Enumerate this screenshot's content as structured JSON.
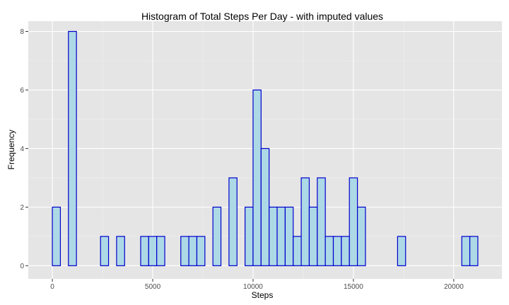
{
  "chart_data": {
    "type": "bar",
    "title": "Histogram of Total Steps Per Day - with imputed values",
    "xlabel": "Steps",
    "ylabel": "Frequency",
    "binwidth": 400,
    "x_bin_starts": [
      -400,
      0,
      400,
      800,
      1200,
      1600,
      2000,
      2400,
      2800,
      3200,
      3600,
      4000,
      4400,
      4800,
      5200,
      5600,
      6000,
      6400,
      6800,
      7200,
      7600,
      8000,
      8400,
      8800,
      9200,
      9600,
      10000,
      10400,
      10800,
      11200,
      11600,
      12000,
      12400,
      12800,
      13200,
      13600,
      14000,
      14400,
      14800,
      15200,
      15600,
      16000,
      16400,
      16800,
      17200,
      17600,
      18000,
      18400,
      18800,
      19200,
      19600,
      20000,
      20400,
      20800,
      21200
    ],
    "values": [
      0,
      2,
      0,
      8,
      0,
      0,
      0,
      1,
      0,
      1,
      0,
      0,
      1,
      1,
      1,
      0,
      0,
      1,
      1,
      1,
      0,
      2,
      0,
      3,
      0,
      2,
      6,
      4,
      2,
      2,
      2,
      1,
      3,
      2,
      3,
      1,
      1,
      1,
      3,
      2,
      0,
      0,
      0,
      0,
      1,
      0,
      0,
      0,
      0,
      0,
      0,
      0,
      1,
      1,
      0
    ],
    "xlim": [
      -400,
      21600
    ],
    "ylim": [
      0,
      8
    ],
    "x_ticks": [
      0,
      5000,
      10000,
      15000,
      20000
    ],
    "y_ticks": [
      0,
      2,
      4,
      6,
      8
    ],
    "grid": true,
    "colors": {
      "fill": "#add8e6",
      "outline": "#0000cd",
      "panel": "#e5e5e5"
    }
  }
}
